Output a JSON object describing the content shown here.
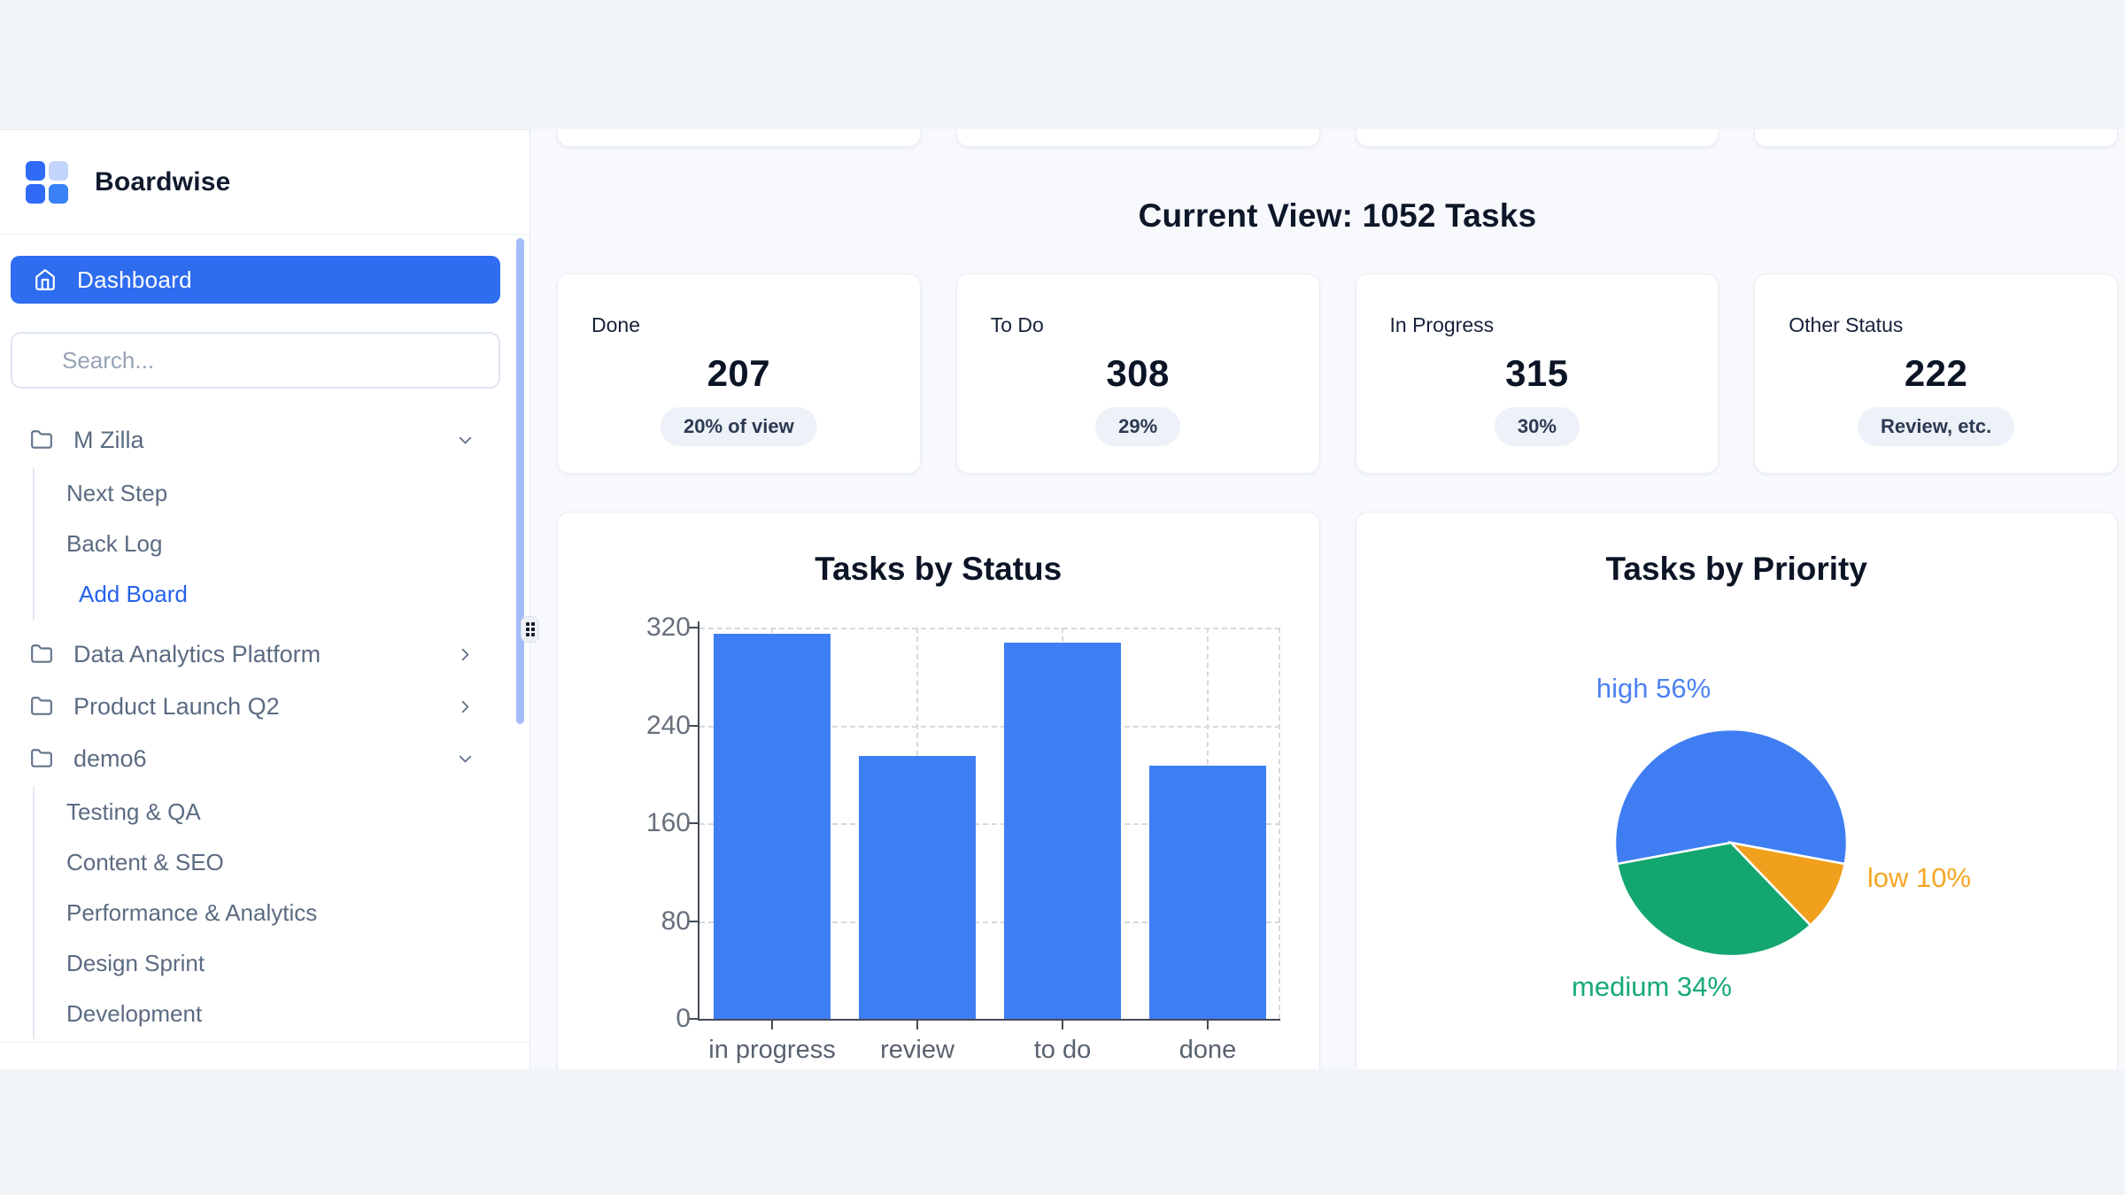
{
  "app": {
    "brand": "Boardwise"
  },
  "sidebar": {
    "dashboard_label": "Dashboard",
    "search_placeholder": "Search...",
    "groups": [
      {
        "label": "M Zilla",
        "state": "expanded",
        "children": [
          {
            "label": "Next Step",
            "type": "board"
          },
          {
            "label": "Back Log",
            "type": "board"
          },
          {
            "label": "Add Board",
            "type": "action"
          }
        ]
      },
      {
        "label": "Data Analytics Platform",
        "state": "collapsed",
        "children": []
      },
      {
        "label": "Product Launch Q2",
        "state": "collapsed",
        "children": []
      },
      {
        "label": "demo6",
        "state": "expanded",
        "children": [
          {
            "label": "Testing & QA",
            "type": "board"
          },
          {
            "label": "Content & SEO",
            "type": "board"
          },
          {
            "label": "Performance & Analytics",
            "type": "board"
          },
          {
            "label": "Design Sprint",
            "type": "board"
          },
          {
            "label": "Development",
            "type": "board"
          }
        ]
      }
    ]
  },
  "main": {
    "heading": "Current View: 1052 Tasks",
    "stat_cards": [
      {
        "label": "Done",
        "value": "207",
        "badge": "20% of view"
      },
      {
        "label": "To Do",
        "value": "308",
        "badge": "29%"
      },
      {
        "label": "In Progress",
        "value": "315",
        "badge": "30%"
      },
      {
        "label": "Other Status",
        "value": "222",
        "badge": "Review, etc."
      }
    ]
  },
  "chart_data": [
    {
      "type": "bar",
      "title": "Tasks by Status",
      "categories": [
        "in progress",
        "review",
        "to do",
        "done"
      ],
      "values": [
        315,
        215,
        308,
        207
      ],
      "xlabel": "",
      "ylabel": "",
      "ylim": [
        0,
        320
      ],
      "yticks": [
        0,
        80,
        160,
        240,
        320
      ],
      "grid": true,
      "bar_color": "#3e7ef5"
    },
    {
      "type": "pie",
      "title": "Tasks by Priority",
      "labels": [
        "high",
        "low",
        "medium"
      ],
      "values": [
        56,
        10,
        34
      ],
      "slice_colors": [
        "#3f7ef2",
        "#f0a01c",
        "#13a76f"
      ],
      "label_colors": [
        "#4d82f2",
        "#f5a623",
        "#17a974"
      ],
      "label_texts": [
        "high 56%",
        "low 10%",
        "medium 34%"
      ],
      "rotation_deg": -100.8,
      "legend_position": "outside-labels"
    }
  ],
  "colors": {
    "accent_blue": "#2e6cf0",
    "link_blue": "#2563eb",
    "logo_blue": "#2f6bf6",
    "logo_light_blue": "#c3d4fb",
    "scrollbar_blue": "#a4bdf8",
    "page_bg": "#f1f4f8",
    "main_bg": "#f7f9fc"
  }
}
